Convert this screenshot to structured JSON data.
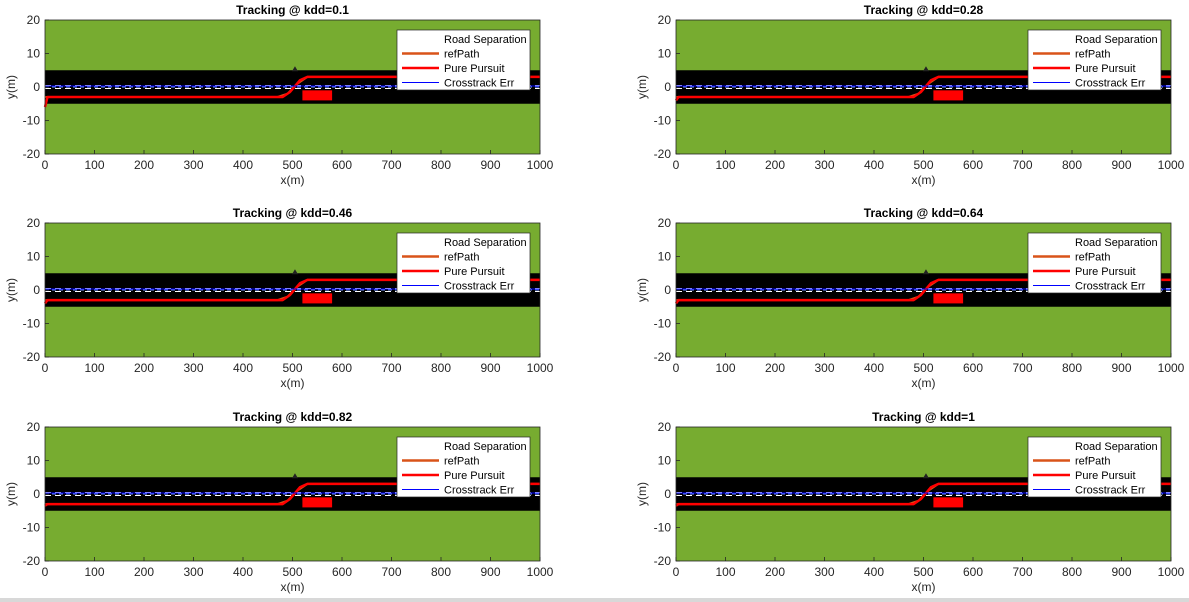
{
  "colors": {
    "grass": "#77AC30",
    "road": "#000000",
    "lane_marking": "#ffffff",
    "ref_path": "#D95319",
    "pure_pursuit": "#ff0000",
    "crosstrack": "#0000ff",
    "centerline": "#6f8fff",
    "obstacle": "#ff0000"
  },
  "legend_labels": [
    "Road Separation",
    "refPath",
    "Pure Pursuit",
    "Crosstrack Err"
  ],
  "chart_data": [
    {
      "type": "line",
      "title": "Tracking @ kdd=0.1",
      "xlabel": "x(m)",
      "ylabel": "y(m)",
      "xlim": [
        0,
        1000
      ],
      "ylim": [
        -20,
        20
      ],
      "xticks": [
        0,
        100,
        200,
        300,
        400,
        500,
        600,
        700,
        800,
        900,
        1000
      ],
      "yticks": [
        -20,
        -10,
        0,
        10,
        20
      ],
      "road": {
        "y_min": -5,
        "y_max": 5,
        "separation_y": 0
      },
      "obstacle": {
        "x": [
          520,
          580
        ],
        "y": [
          -4,
          -1
        ]
      },
      "series": [
        {
          "name": "refPath",
          "x": [
            0,
            470,
            490,
            510,
            530,
            1000
          ],
          "y": [
            -3,
            -3,
            -2,
            1,
            3,
            3
          ]
        },
        {
          "name": "Pure Pursuit",
          "x": [
            0,
            5,
            480,
            495,
            515,
            530,
            1000
          ],
          "y": [
            -6,
            -3,
            -3,
            -1.5,
            2,
            3,
            3
          ]
        },
        {
          "name": "Crosstrack Err",
          "x": [
            0,
            1000
          ],
          "y": [
            0.3,
            0.3
          ]
        }
      ],
      "legend_location": "top-right"
    },
    {
      "type": "line",
      "title": "Tracking @ kdd=0.28",
      "xlabel": "x(m)",
      "ylabel": "y(m)",
      "xlim": [
        0,
        1000
      ],
      "ylim": [
        -20,
        20
      ],
      "xticks": [
        0,
        100,
        200,
        300,
        400,
        500,
        600,
        700,
        800,
        900,
        1000
      ],
      "yticks": [
        -20,
        -10,
        0,
        10,
        20
      ],
      "road": {
        "y_min": -5,
        "y_max": 5,
        "separation_y": 0
      },
      "obstacle": {
        "x": [
          520,
          580
        ],
        "y": [
          -4,
          -1
        ]
      },
      "series": [
        {
          "name": "refPath",
          "x": [
            0,
            470,
            490,
            510,
            530,
            1000
          ],
          "y": [
            -3,
            -3,
            -2,
            1,
            3,
            3
          ]
        },
        {
          "name": "Pure Pursuit",
          "x": [
            0,
            5,
            480,
            495,
            515,
            530,
            1000
          ],
          "y": [
            -4,
            -3,
            -3,
            -1.5,
            2,
            3,
            3
          ]
        },
        {
          "name": "Crosstrack Err",
          "x": [
            0,
            1000
          ],
          "y": [
            0.3,
            0.3
          ]
        }
      ],
      "legend_location": "top-right"
    },
    {
      "type": "line",
      "title": "Tracking @ kdd=0.46",
      "xlabel": "x(m)",
      "ylabel": "y(m)",
      "xlim": [
        0,
        1000
      ],
      "ylim": [
        -20,
        20
      ],
      "xticks": [
        0,
        100,
        200,
        300,
        400,
        500,
        600,
        700,
        800,
        900,
        1000
      ],
      "yticks": [
        -20,
        -10,
        0,
        10,
        20
      ],
      "road": {
        "y_min": -5,
        "y_max": 5,
        "separation_y": 0
      },
      "obstacle": {
        "x": [
          520,
          580
        ],
        "y": [
          -4,
          -1
        ]
      },
      "series": [
        {
          "name": "refPath",
          "x": [
            0,
            470,
            490,
            510,
            530,
            1000
          ],
          "y": [
            -3,
            -3,
            -2,
            1,
            3,
            3
          ]
        },
        {
          "name": "Pure Pursuit",
          "x": [
            0,
            5,
            480,
            495,
            515,
            530,
            1000
          ],
          "y": [
            -4,
            -3,
            -3,
            -1.5,
            2,
            3,
            3
          ]
        },
        {
          "name": "Crosstrack Err",
          "x": [
            0,
            1000
          ],
          "y": [
            0.3,
            0.3
          ]
        }
      ],
      "legend_location": "top-right"
    },
    {
      "type": "line",
      "title": "Tracking @ kdd=0.64",
      "xlabel": "x(m)",
      "ylabel": "y(m)",
      "xlim": [
        0,
        1000
      ],
      "ylim": [
        -20,
        20
      ],
      "xticks": [
        0,
        100,
        200,
        300,
        400,
        500,
        600,
        700,
        800,
        900,
        1000
      ],
      "yticks": [
        -20,
        -10,
        0,
        10,
        20
      ],
      "road": {
        "y_min": -5,
        "y_max": 5,
        "separation_y": 0
      },
      "obstacle": {
        "x": [
          520,
          580
        ],
        "y": [
          -4,
          -1
        ]
      },
      "series": [
        {
          "name": "refPath",
          "x": [
            0,
            470,
            490,
            510,
            530,
            1000
          ],
          "y": [
            -3,
            -3,
            -2,
            1,
            3,
            3
          ]
        },
        {
          "name": "Pure Pursuit",
          "x": [
            0,
            5,
            480,
            495,
            515,
            530,
            1000
          ],
          "y": [
            -4,
            -3,
            -3,
            -1.5,
            2,
            3,
            3
          ]
        },
        {
          "name": "Crosstrack Err",
          "x": [
            0,
            1000
          ],
          "y": [
            0.3,
            0.3
          ]
        }
      ],
      "legend_location": "top-right"
    },
    {
      "type": "line",
      "title": "Tracking @ kdd=0.82",
      "xlabel": "x(m)",
      "ylabel": "y(m)",
      "xlim": [
        0,
        1000
      ],
      "ylim": [
        -20,
        20
      ],
      "xticks": [
        0,
        100,
        200,
        300,
        400,
        500,
        600,
        700,
        800,
        900,
        1000
      ],
      "yticks": [
        -20,
        -10,
        0,
        10,
        20
      ],
      "road": {
        "y_min": -5,
        "y_max": 5,
        "separation_y": 0
      },
      "obstacle": {
        "x": [
          520,
          580
        ],
        "y": [
          -4,
          -1
        ]
      },
      "series": [
        {
          "name": "refPath",
          "x": [
            0,
            470,
            490,
            510,
            530,
            1000
          ],
          "y": [
            -3,
            -3,
            -2,
            1,
            3,
            3
          ]
        },
        {
          "name": "Pure Pursuit",
          "x": [
            0,
            5,
            480,
            495,
            515,
            530,
            1000
          ],
          "y": [
            -3.5,
            -3,
            -3,
            -1.5,
            2,
            3,
            3
          ]
        },
        {
          "name": "Crosstrack Err",
          "x": [
            0,
            1000
          ],
          "y": [
            0.3,
            0.3
          ]
        }
      ],
      "legend_location": "top-right"
    },
    {
      "type": "line",
      "title": "Tracking @ kdd=1",
      "xlabel": "x(m)",
      "ylabel": "y(m)",
      "xlim": [
        0,
        1000
      ],
      "ylim": [
        -20,
        20
      ],
      "xticks": [
        0,
        100,
        200,
        300,
        400,
        500,
        600,
        700,
        800,
        900,
        1000
      ],
      "yticks": [
        -20,
        -10,
        0,
        10,
        20
      ],
      "road": {
        "y_min": -5,
        "y_max": 5,
        "separation_y": 0
      },
      "obstacle": {
        "x": [
          520,
          580
        ],
        "y": [
          -4,
          -1
        ]
      },
      "series": [
        {
          "name": "refPath",
          "x": [
            0,
            470,
            490,
            510,
            530,
            1000
          ],
          "y": [
            -3,
            -3,
            -2,
            1,
            3,
            3
          ]
        },
        {
          "name": "Pure Pursuit",
          "x": [
            0,
            5,
            480,
            495,
            515,
            530,
            1000
          ],
          "y": [
            -3.5,
            -3,
            -3,
            -1.5,
            2,
            3,
            3
          ]
        },
        {
          "name": "Crosstrack Err",
          "x": [
            0,
            1000
          ],
          "y": [
            0.3,
            0.3
          ]
        }
      ],
      "legend_location": "top-right"
    }
  ]
}
